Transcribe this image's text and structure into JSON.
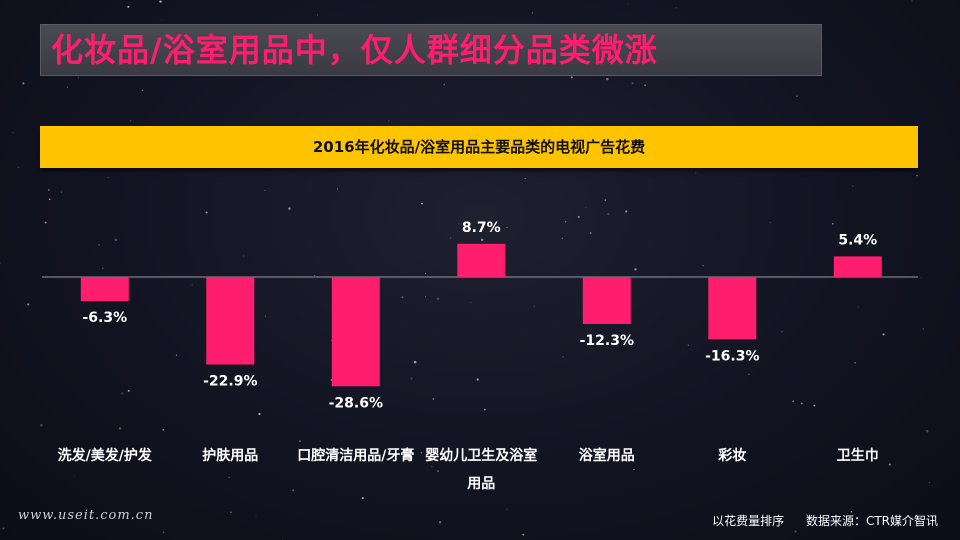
{
  "slide": {
    "title": "化妆品/浴室用品中，仅人群细分品类微涨",
    "footer_url": "www.useit.com.cn",
    "footer_sort_note": "以花费量排序",
    "footer_source": "数据来源：CTR媒介智讯"
  },
  "colors": {
    "bar": "#ff1e6e",
    "title_text": "#ff1e6e",
    "chart_title_bg": "#ffc400",
    "axis": "#9a9aa4",
    "background": "#121321"
  },
  "chart_data": {
    "type": "bar",
    "title": "2016年化妆品/浴室用品主要品类的电视广告花费",
    "categories": [
      "洗发/美发/护发",
      "护肤用品",
      "口腔清洁用品/牙膏",
      "婴幼儿卫生及浴室用品",
      "浴室用品",
      "彩妆",
      "卫生巾"
    ],
    "values": [
      -6.3,
      -22.9,
      -28.6,
      8.7,
      -12.3,
      -16.3,
      5.4
    ],
    "value_labels": [
      "-6.3%",
      "-22.9%",
      "-28.6%",
      "8.7%",
      "-12.3%",
      "-16.3%",
      "5.4%"
    ],
    "unit": "%",
    "xlabel": "",
    "ylabel": "",
    "grid": false,
    "legend": "none"
  }
}
